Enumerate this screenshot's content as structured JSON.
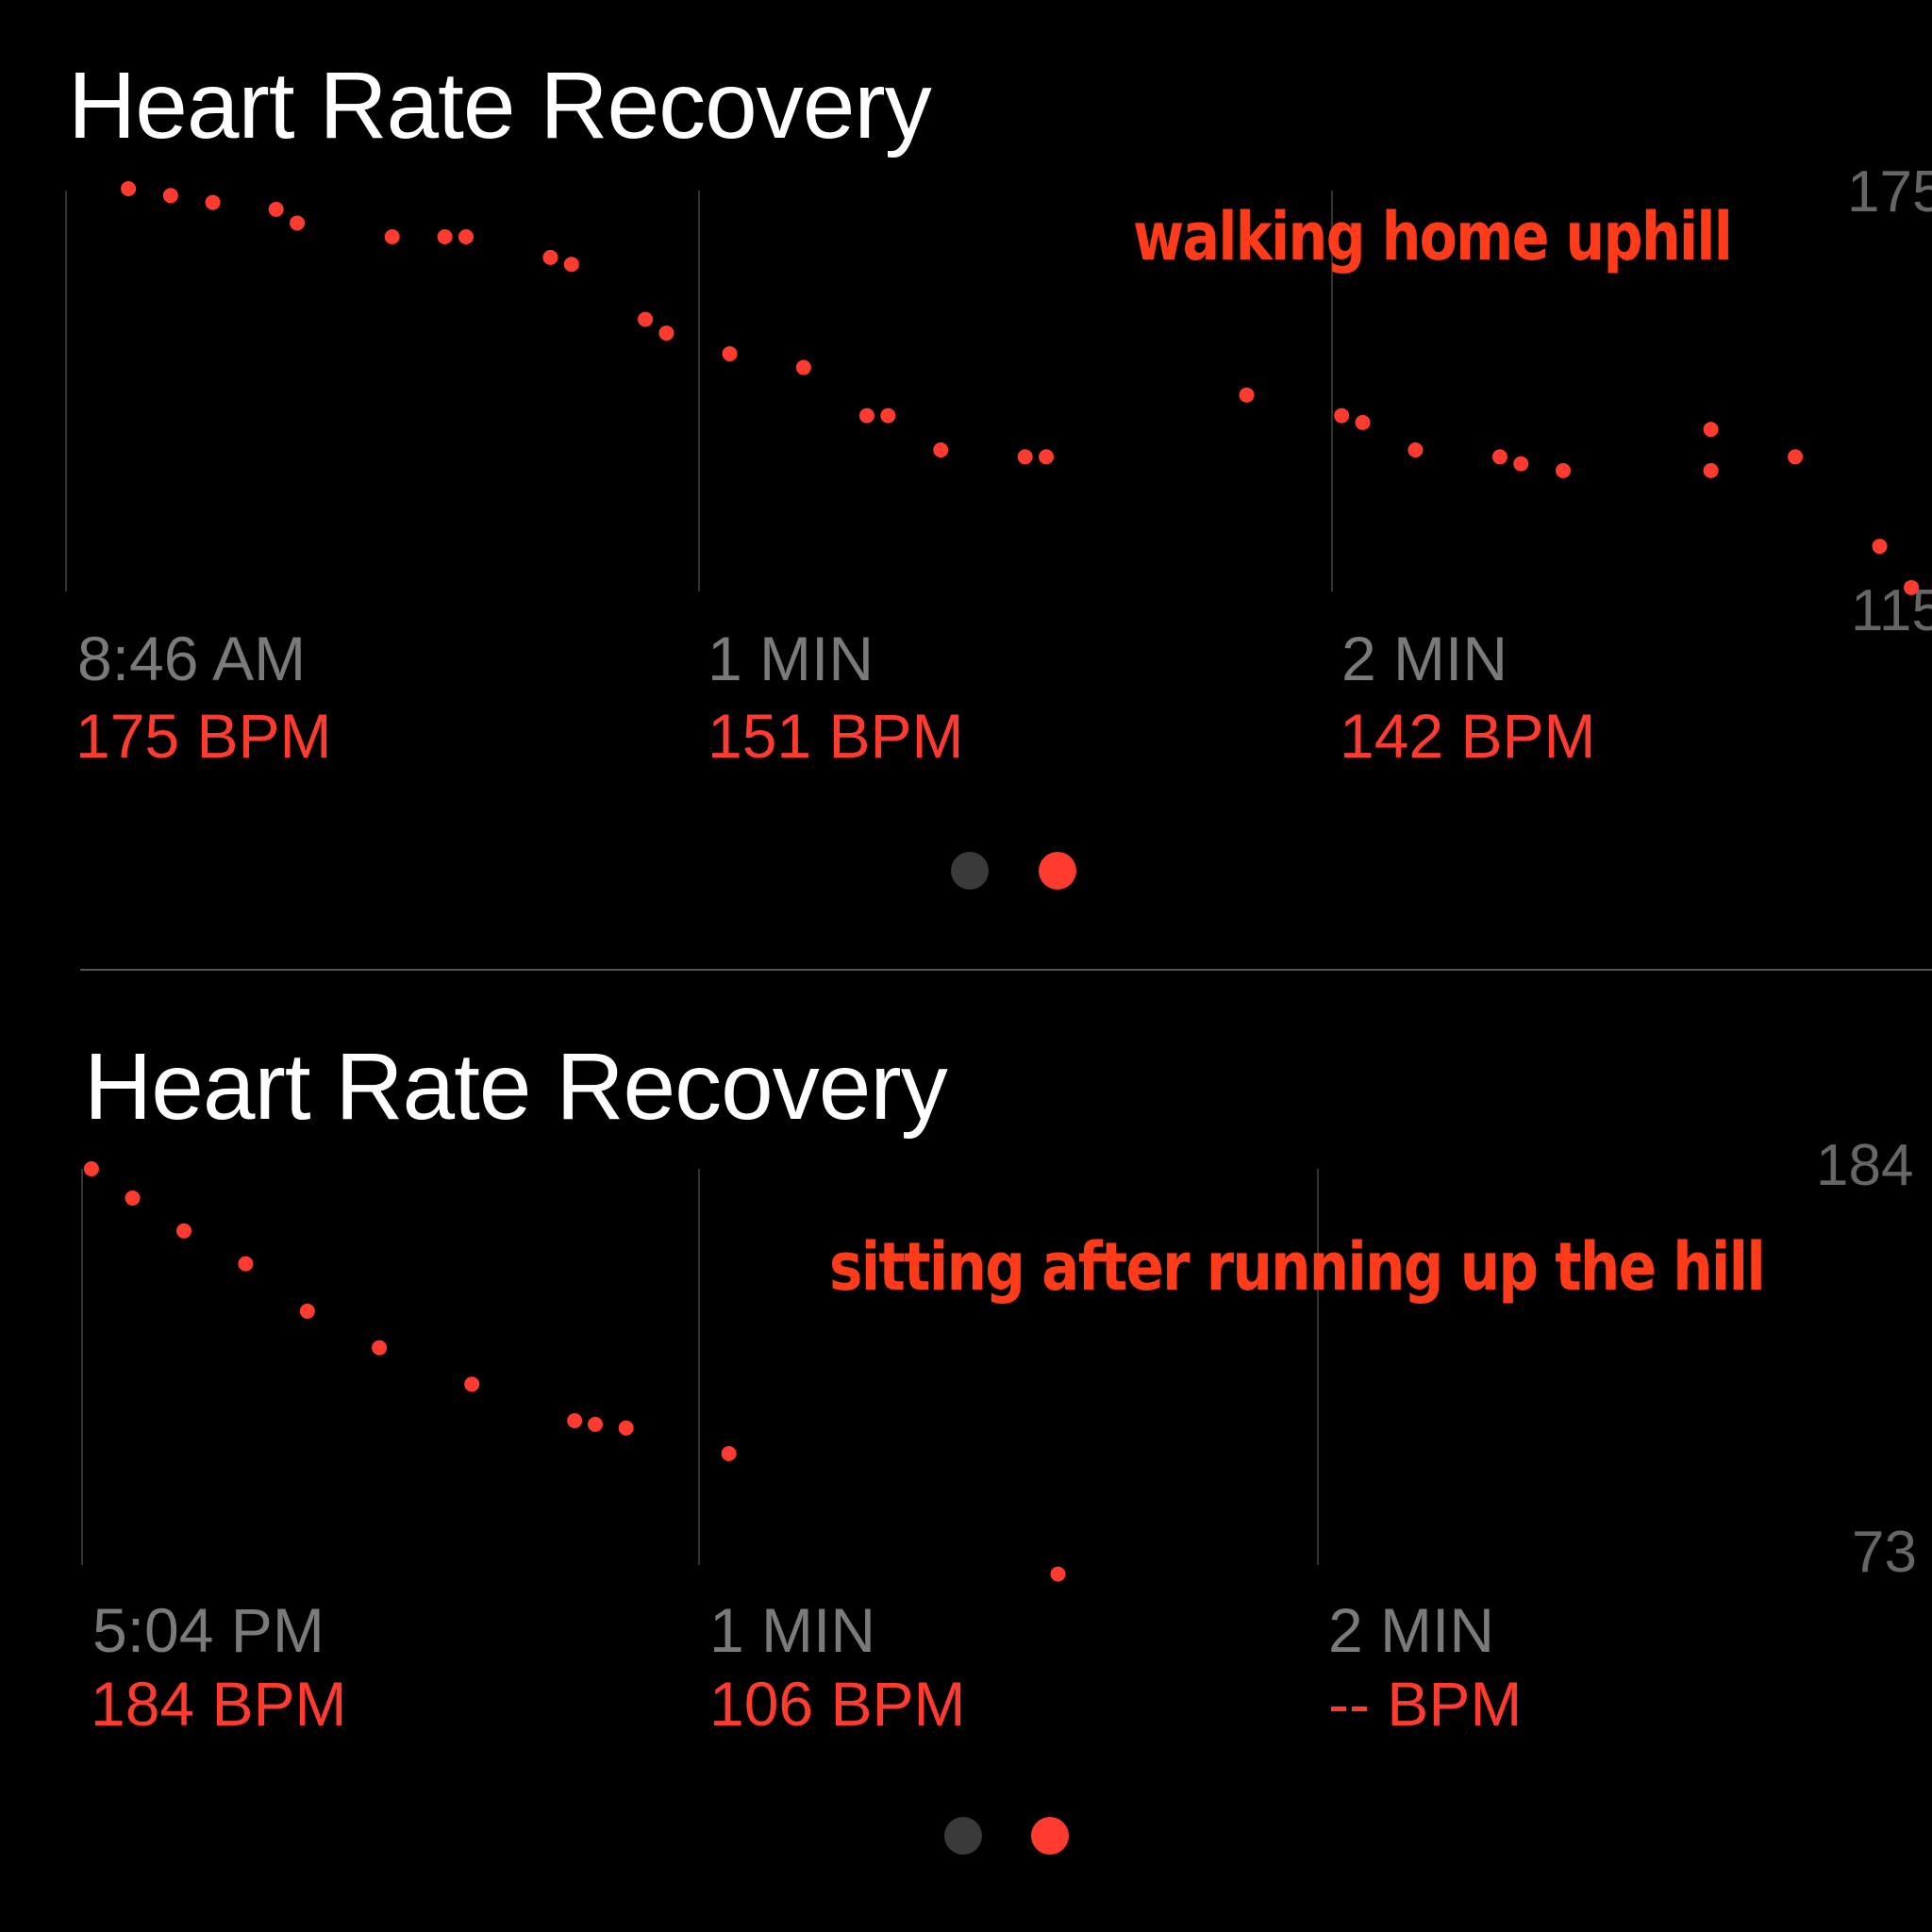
{
  "colors": {
    "accent": "#ff3b30",
    "page_inactive": "#3a3a3a",
    "annotation": "#ff3b1a"
  },
  "panels": [
    {
      "title": "Heart Rate Recovery",
      "annotation": "walking home uphill",
      "y_max_label": "175",
      "y_min_label": "115",
      "columns": [
        {
          "time": "8:46 AM",
          "bpm": "175 BPM"
        },
        {
          "time": "1 MIN",
          "bpm": "151 BPM"
        },
        {
          "time": "2 MIN",
          "bpm": "142 BPM"
        }
      ],
      "page_indicator": {
        "pages": 2,
        "current": 2
      }
    },
    {
      "title": "Heart Rate Recovery",
      "annotation": "sitting after running up the hill",
      "y_max_label": "184",
      "y_min_label": "73",
      "columns": [
        {
          "time": "5:04 PM",
          "bpm": "184 BPM"
        },
        {
          "time": "1 MIN",
          "bpm": "106 BPM"
        },
        {
          "time": "2 MIN",
          "bpm": "-- BPM"
        }
      ],
      "page_indicator": {
        "pages": 2,
        "current": 2
      }
    }
  ],
  "chart_data": [
    {
      "type": "scatter",
      "title": "Heart Rate Recovery",
      "xlabel": "",
      "ylabel": "",
      "x_unit": "seconds",
      "ylim": [
        115,
        175
      ],
      "grid": "vertical",
      "color": "#ff3b30",
      "x": [
        6,
        10,
        14,
        20,
        22,
        31,
        36,
        38,
        46,
        48,
        55,
        57,
        63,
        70,
        76,
        78,
        83,
        91,
        93,
        112,
        121,
        123,
        128,
        136,
        138,
        142,
        156,
        156,
        164,
        172,
        175
      ],
      "y": [
        175,
        174,
        173,
        172,
        170,
        168,
        168,
        168,
        165,
        164,
        156,
        154,
        151,
        149,
        142,
        142,
        137,
        136,
        136,
        145,
        142,
        141,
        137,
        136,
        135,
        134,
        140,
        134,
        136,
        123,
        117
      ]
    },
    {
      "type": "scatter",
      "title": "Heart Rate Recovery",
      "xlabel": "",
      "ylabel": "",
      "x_unit": "seconds",
      "ylim": [
        73,
        184
      ],
      "grid": "vertical",
      "color": "#ff3b30",
      "x": [
        1,
        5,
        10,
        16,
        22,
        29,
        38,
        48,
        50,
        53,
        63,
        95
      ],
      "y": [
        184,
        176,
        167,
        158,
        145,
        135,
        125,
        115,
        114,
        113,
        106,
        73
      ]
    }
  ]
}
